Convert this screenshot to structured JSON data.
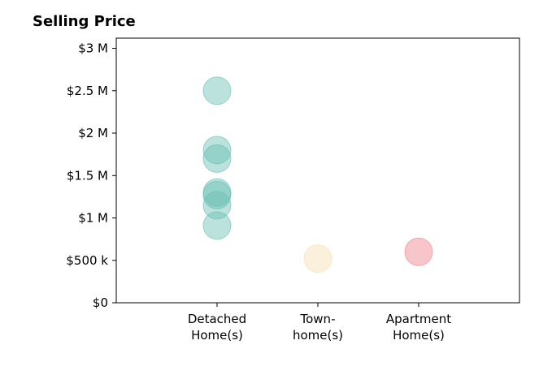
{
  "chart_data": {
    "type": "scatter",
    "title": "Selling Price",
    "xlabel": "",
    "ylabel": "",
    "categories": [
      [
        "Detached",
        "Home(s)"
      ],
      [
        "Town-",
        "home(s)"
      ],
      [
        "Apartment",
        "Home(s)"
      ]
    ],
    "yticks": [
      {
        "value": 0,
        "label": "$0"
      },
      {
        "value": 500000,
        "label": "$500 k"
      },
      {
        "value": 1000000,
        "label": "$1 M"
      },
      {
        "value": 1500000,
        "label": "$1.5 M"
      },
      {
        "value": 2000000,
        "label": "$2 M"
      },
      {
        "value": 2500000,
        "label": "$2.5 M"
      },
      {
        "value": 3000000,
        "label": "$3 M"
      }
    ],
    "ylim": [
      0,
      3120000
    ],
    "grid": false,
    "series": [
      {
        "category": 0,
        "color": "#69bfb2",
        "values": [
          2500000,
          1800000,
          1700000,
          1300000,
          1270000,
          1150000,
          910000
        ]
      },
      {
        "category": 1,
        "color": "#f7deb0",
        "values": [
          520000
        ]
      },
      {
        "category": 2,
        "color": "#f0808a",
        "values": [
          600000
        ]
      }
    ]
  }
}
